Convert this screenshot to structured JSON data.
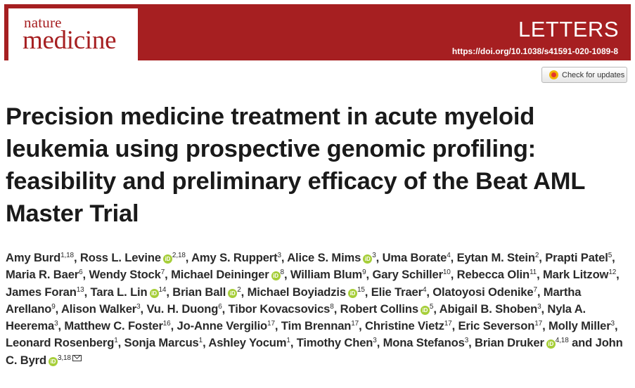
{
  "journal": {
    "name_top": "nature",
    "name_bottom": "medicine",
    "section": "LETTERS",
    "doi": "https://doi.org/10.1038/s41591-020-1089-8",
    "brand_color": "#a61f21"
  },
  "check_updates": {
    "label": "Check for updates",
    "icon": "crossmark-icon"
  },
  "article": {
    "title": "Precision medicine treatment in acute myeloid leukemia using prospective genomic profiling: feasibility and preliminary efficacy of the Beat AML Master Trial"
  },
  "authors": [
    {
      "name": "Amy Burd",
      "aff": "1,18",
      "orcid": false
    },
    {
      "name": "Ross L. Levine",
      "aff": "2,18",
      "orcid": true
    },
    {
      "name": "Amy S. Ruppert",
      "aff": "3",
      "orcid": false
    },
    {
      "name": "Alice S. Mims",
      "aff": "3",
      "orcid": true
    },
    {
      "name": "Uma Borate",
      "aff": "4",
      "orcid": false
    },
    {
      "name": "Eytan M. Stein",
      "aff": "2",
      "orcid": false
    },
    {
      "name": "Prapti Patel",
      "aff": "5",
      "orcid": false
    },
    {
      "name": "Maria R. Baer",
      "aff": "6",
      "orcid": false
    },
    {
      "name": "Wendy Stock",
      "aff": "7",
      "orcid": false
    },
    {
      "name": "Michael Deininger",
      "aff": "8",
      "orcid": true
    },
    {
      "name": "William Blum",
      "aff": "9",
      "orcid": false
    },
    {
      "name": "Gary Schiller",
      "aff": "10",
      "orcid": false
    },
    {
      "name": "Rebecca Olin",
      "aff": "11",
      "orcid": false
    },
    {
      "name": "Mark Litzow",
      "aff": "12",
      "orcid": false
    },
    {
      "name": "James Foran",
      "aff": "13",
      "orcid": false
    },
    {
      "name": "Tara L. Lin",
      "aff": "14",
      "orcid": true
    },
    {
      "name": "Brian Ball",
      "aff": "2",
      "orcid": true
    },
    {
      "name": "Michael Boyiadzis",
      "aff": "15",
      "orcid": true
    },
    {
      "name": "Elie Traer",
      "aff": "4",
      "orcid": false
    },
    {
      "name": "Olatoyosi Odenike",
      "aff": "7",
      "orcid": false
    },
    {
      "name": "Martha Arellano",
      "aff": "9",
      "orcid": false
    },
    {
      "name": "Alison Walker",
      "aff": "3",
      "orcid": false
    },
    {
      "name": "Vu. H. Duong",
      "aff": "6",
      "orcid": false
    },
    {
      "name": "Tibor Kovacsovics",
      "aff": "8",
      "orcid": false
    },
    {
      "name": "Robert Collins",
      "aff": "5",
      "orcid": true
    },
    {
      "name": "Abigail B. Shoben",
      "aff": "3",
      "orcid": false
    },
    {
      "name": "Nyla A. Heerema",
      "aff": "3",
      "orcid": false
    },
    {
      "name": "Matthew C. Foster",
      "aff": "16",
      "orcid": false
    },
    {
      "name": "Jo-Anne Vergilio",
      "aff": "17",
      "orcid": false
    },
    {
      "name": "Tim Brennan",
      "aff": "17",
      "orcid": false
    },
    {
      "name": "Christine Vietz",
      "aff": "17",
      "orcid": false
    },
    {
      "name": "Eric Severson",
      "aff": "17",
      "orcid": false
    },
    {
      "name": "Molly Miller",
      "aff": "3",
      "orcid": false
    },
    {
      "name": "Leonard Rosenberg",
      "aff": "1",
      "orcid": false
    },
    {
      "name": "Sonja Marcus",
      "aff": "1",
      "orcid": false
    },
    {
      "name": "Ashley Yocum",
      "aff": "1",
      "orcid": false
    },
    {
      "name": "Timothy Chen",
      "aff": "3",
      "orcid": false
    },
    {
      "name": "Mona Stefanos",
      "aff": "3",
      "orcid": false
    },
    {
      "name": "Brian Druker",
      "aff": "4,18",
      "orcid": true
    },
    {
      "name": "John C. Byrd",
      "aff": "3,18",
      "orcid": true,
      "corresponding": true
    }
  ],
  "author_separators": {
    "comma": ", ",
    "last_join": " and "
  },
  "icons": {
    "orcid": "orcid-icon",
    "mail": "mail-icon"
  },
  "orcid_glyph": "iD"
}
